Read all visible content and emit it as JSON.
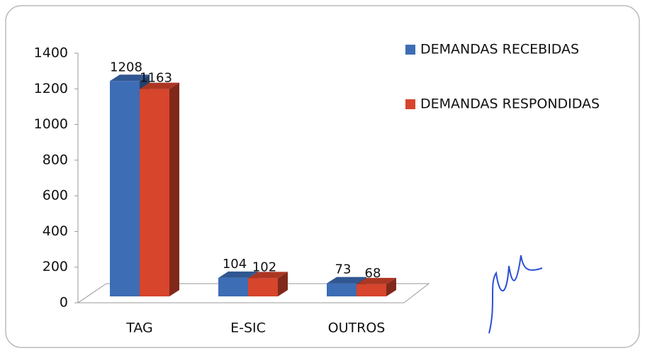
{
  "chart_data": {
    "type": "bar",
    "categories": [
      "TAG",
      "E-SIC",
      "OUTROS"
    ],
    "series": [
      {
        "name": "DEMANDAS RECEBIDAS",
        "color": "#3d6db5",
        "values": [
          1208,
          104,
          73
        ]
      },
      {
        "name": "DEMANDAS RESPONDIDAS",
        "color": "#d6452c",
        "values": [
          1163,
          102,
          68
        ]
      }
    ],
    "ylim": [
      0,
      1400
    ],
    "yticks": [
      0,
      200,
      400,
      600,
      800,
      1000,
      1200,
      1400
    ],
    "legend": "top-right"
  }
}
